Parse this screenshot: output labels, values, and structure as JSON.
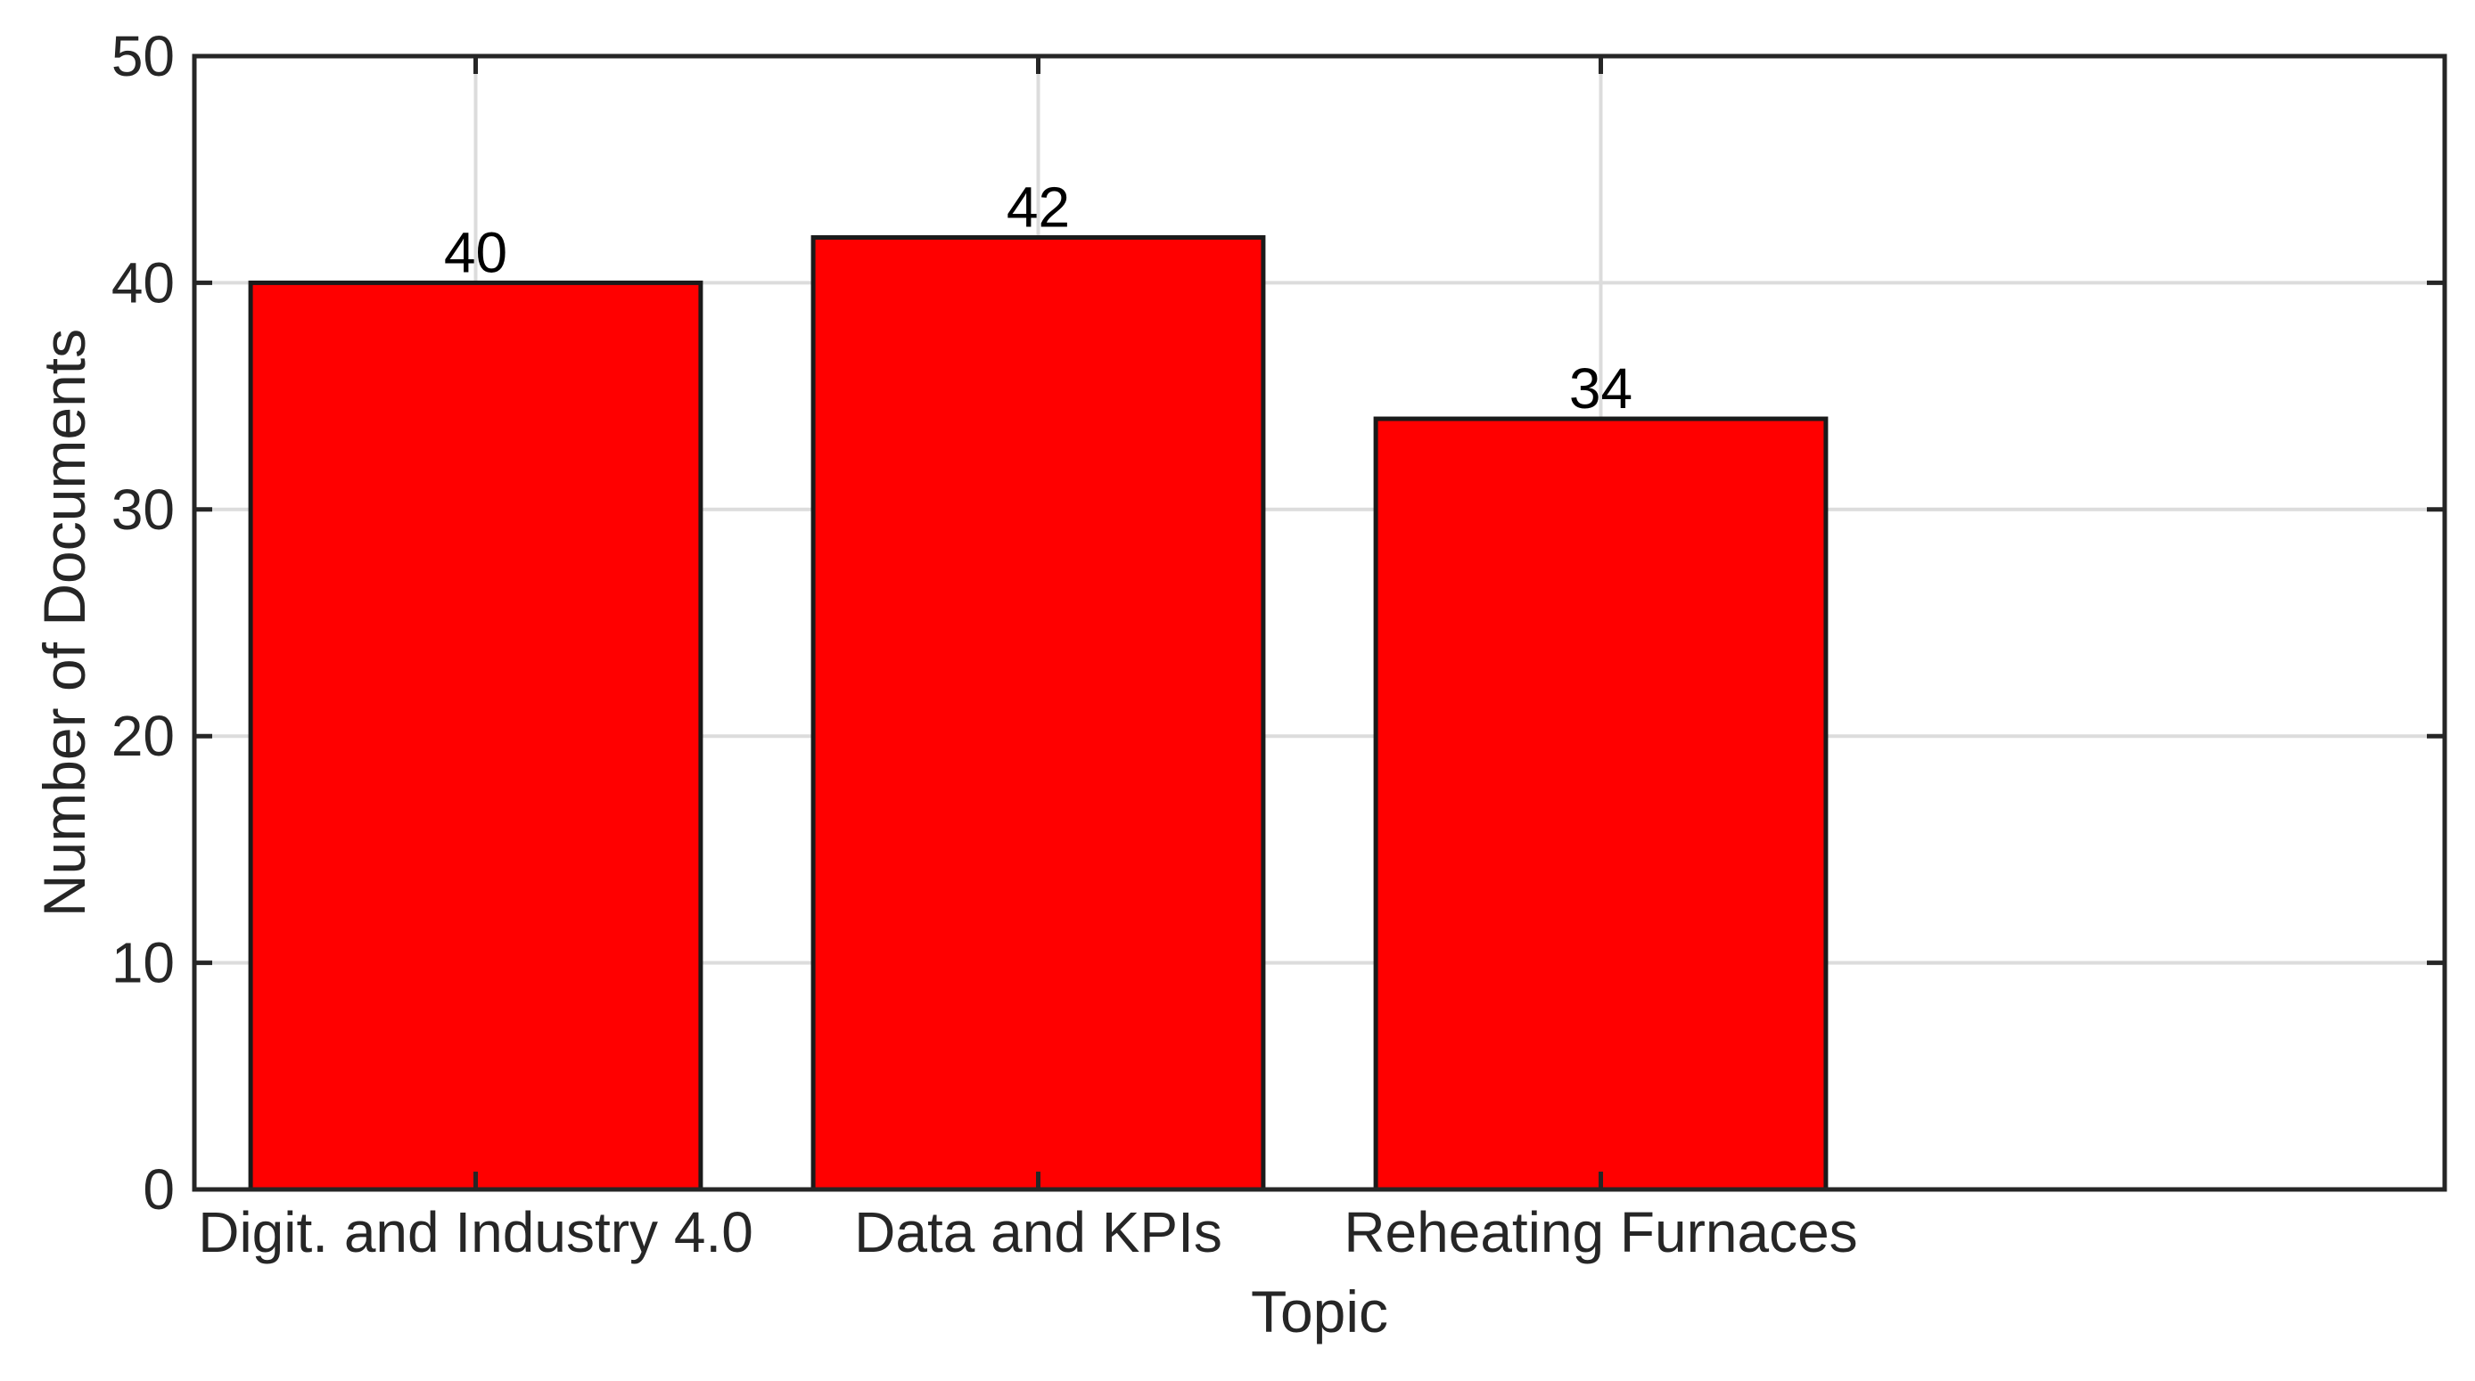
{
  "chart_data": {
    "type": "bar",
    "title": "",
    "xlabel": "Topic",
    "ylabel": "Number of Documents",
    "categories": [
      "Digit. and Industry 4.0",
      "Data and KPIs",
      "Reheating Furnaces"
    ],
    "values": [
      40,
      42,
      34
    ],
    "data_labels": [
      "40",
      "42",
      "34"
    ],
    "ylim": [
      0,
      50
    ],
    "yticks": [
      0,
      10,
      20,
      30,
      40,
      50
    ],
    "ytick_labels": [
      "0",
      "10",
      "20",
      "30",
      "40",
      "50"
    ],
    "xlim": [
      0.5,
      4.5
    ],
    "grid": true,
    "legend": "none",
    "colors": {
      "bar_fill": "#ff0000",
      "bar_edge": "#1a1a1a",
      "axes": "#262626",
      "grid": "#dcdcdc"
    }
  }
}
